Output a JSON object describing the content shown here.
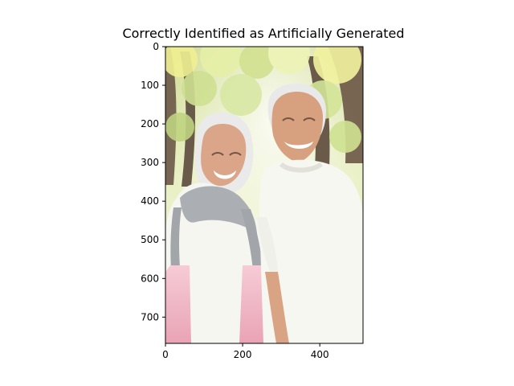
{
  "figure": {
    "title": "Correctly Identified as Artificially Generated"
  },
  "axes": {
    "x_ticks": [
      "0",
      "200",
      "400"
    ],
    "y_ticks": [
      "0",
      "100",
      "200",
      "300",
      "400",
      "500",
      "600",
      "700"
    ],
    "xlim": [
      0,
      512
    ],
    "ylim": [
      768,
      0
    ]
  },
  "photo": {
    "subject": "elderly couple smiling in a park",
    "colors": {
      "foliage": "#d6e29a",
      "tree": "#5a4a3a",
      "hair": "#e6e6e6",
      "scarf_gray": "#9a9ea3",
      "scarf_pink": "#f2b9c7",
      "shirt": "#f7f7f2",
      "skin": "#d7a07e"
    }
  }
}
